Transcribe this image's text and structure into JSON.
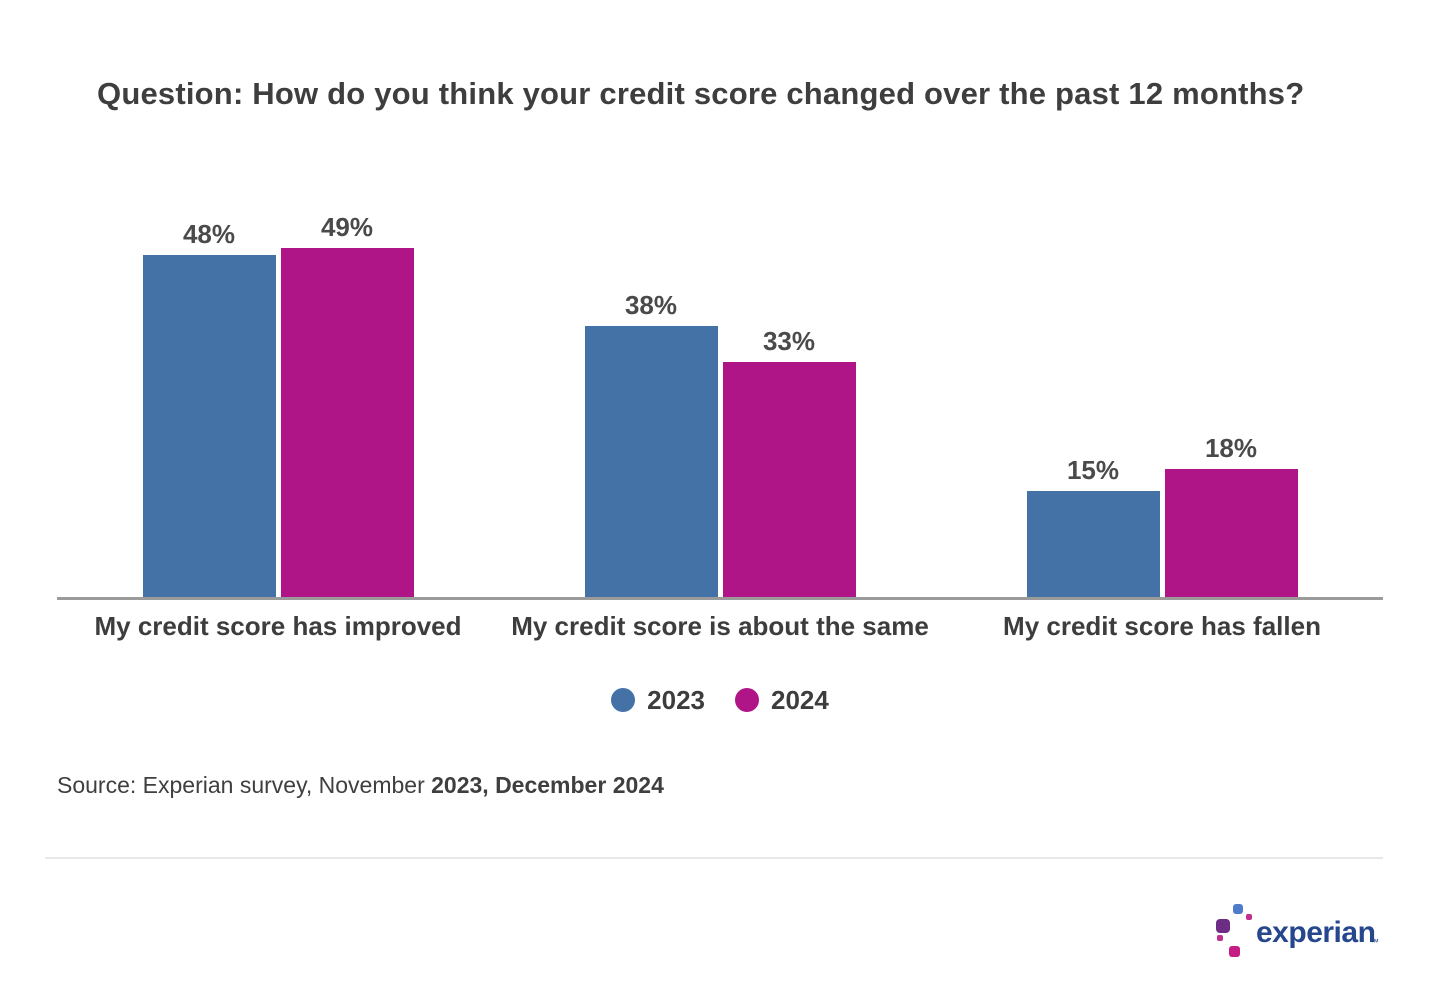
{
  "title": "Question: How do you think your credit score changed over the past 12 months?",
  "chart_data": {
    "type": "bar",
    "categories": [
      "My credit score has improved",
      "My credit score is about the same",
      "My credit score has fallen"
    ],
    "series": [
      {
        "name": "2023",
        "color": "#4471A6",
        "values": [
          48,
          38,
          15
        ]
      },
      {
        "name": "2024",
        "color": "#B01588",
        "values": [
          49,
          33,
          18
        ]
      }
    ],
    "value_suffix": "%",
    "ylim": [
      0,
      52
    ],
    "grid": false,
    "legend_position": "bottom",
    "axis_color": "#9B9B9B"
  },
  "legend": {
    "items": [
      {
        "label": "2023",
        "color": "#4471A6"
      },
      {
        "label": "2024",
        "color": "#B01588"
      }
    ]
  },
  "source": {
    "prefix": "Source: Experian survey, November ",
    "bold": "2023, December 2024"
  },
  "footer": {
    "logo_text": "experian",
    "trademark": "™"
  },
  "colors": {
    "title_text": "#3E3E3E",
    "value_label": "#4A4A4A",
    "category_label": "#3D3D3D",
    "axis_line": "#9B9B9B",
    "divider": "#E8E8E8",
    "logo_navy": "#26478D",
    "logo_blue": "#4E7CCB",
    "logo_purple": "#6D2D85",
    "logo_pink": "#C03090",
    "logo_pink_dark": "#C61D85"
  }
}
